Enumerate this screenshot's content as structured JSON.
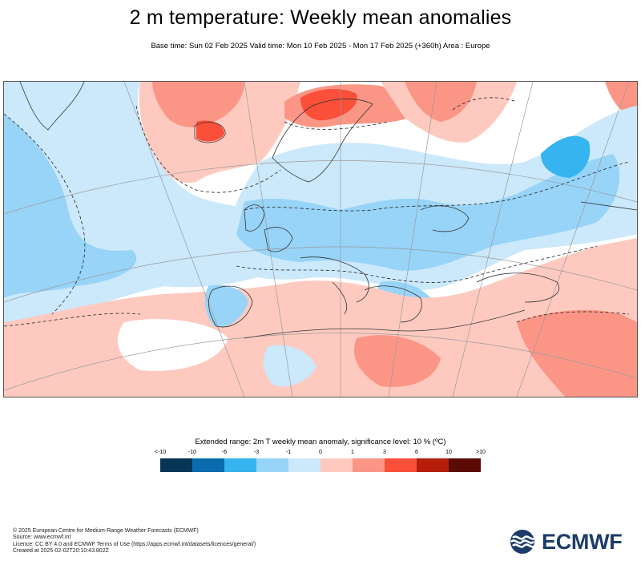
{
  "header": {
    "title": "2 m temperature: Weekly mean anomalies",
    "subtitle": "Base time: Sun 02 Feb 2025 Valid time: Mon 10 Feb 2025 - Mon 17 Feb 2025 (+360h) Area : Europe"
  },
  "map": {
    "area": "Europe",
    "colors": {
      "land_outline": "#333333",
      "graticule": "#9a9a9a",
      "significance_contour": "#222222"
    }
  },
  "legend": {
    "title": "Extended range: 2m T weekly mean anomaly, significance level: 10 % (ºC)",
    "ticks": [
      "<-10",
      "-10",
      "-6",
      "-3",
      "-1",
      "0",
      "1",
      "3",
      "6",
      "10",
      ">10"
    ],
    "colors": [
      "#063556",
      "#0a6cae",
      "#36b4f0",
      "#97d4f8",
      "#cce8fb",
      "#fecac0",
      "#fb9687",
      "#fa4f39",
      "#b41e0a",
      "#5c0a04"
    ]
  },
  "footer": {
    "lines": [
      "© 2025 European Centre for Medium-Range Weather Forecasts (ECMWF)",
      "Source: www.ecmwf.int",
      "Licence: CC BY 4.0 and ECMWF Terms of Use (https://apps.ecmwf.int/datasets/licences/general/)",
      "Created at 2025-02-02T20:10:43.802Z"
    ]
  },
  "logo": {
    "text": "ECMWF",
    "color": "#1c3c6b",
    "icon": "ecmwf-logo-icon"
  }
}
